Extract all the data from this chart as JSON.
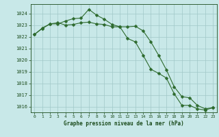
{
  "x": [
    0,
    1,
    2,
    3,
    4,
    5,
    6,
    7,
    8,
    9,
    10,
    11,
    12,
    13,
    14,
    15,
    16,
    17,
    18,
    19,
    20,
    21,
    22,
    23
  ],
  "line1": [
    1022.2,
    1022.7,
    1023.1,
    1023.1,
    1023.35,
    1023.55,
    1023.6,
    1024.35,
    1023.85,
    1023.5,
    1023.05,
    1022.85,
    1021.85,
    1021.55,
    1020.4,
    1019.2,
    1018.85,
    1018.45,
    1017.1,
    1016.1,
    1016.1,
    1015.8,
    1015.7,
    1015.9
  ],
  "line2": [
    1022.2,
    1022.75,
    1023.1,
    1023.2,
    1023.0,
    1023.05,
    1023.2,
    1023.25,
    1023.1,
    1023.05,
    1022.85,
    1022.85,
    1022.85,
    1022.9,
    1022.5,
    1021.55,
    1020.4,
    1019.15,
    1017.7,
    1016.85,
    1016.75,
    1016.1,
    1015.8,
    1015.9
  ],
  "line_color": "#2d6a2d",
  "bg_color": "#c8e8e8",
  "grid_color": "#a0c8c8",
  "text_color": "#1a4a1a",
  "xlabel": "Graphe pression niveau de la mer (hPa)",
  "ylim": [
    1015.5,
    1024.8
  ],
  "yticks": [
    1016,
    1017,
    1018,
    1019,
    1020,
    1021,
    1022,
    1023,
    1024
  ],
  "marker": "D",
  "marker_size": 2.5,
  "linewidth": 0.8
}
